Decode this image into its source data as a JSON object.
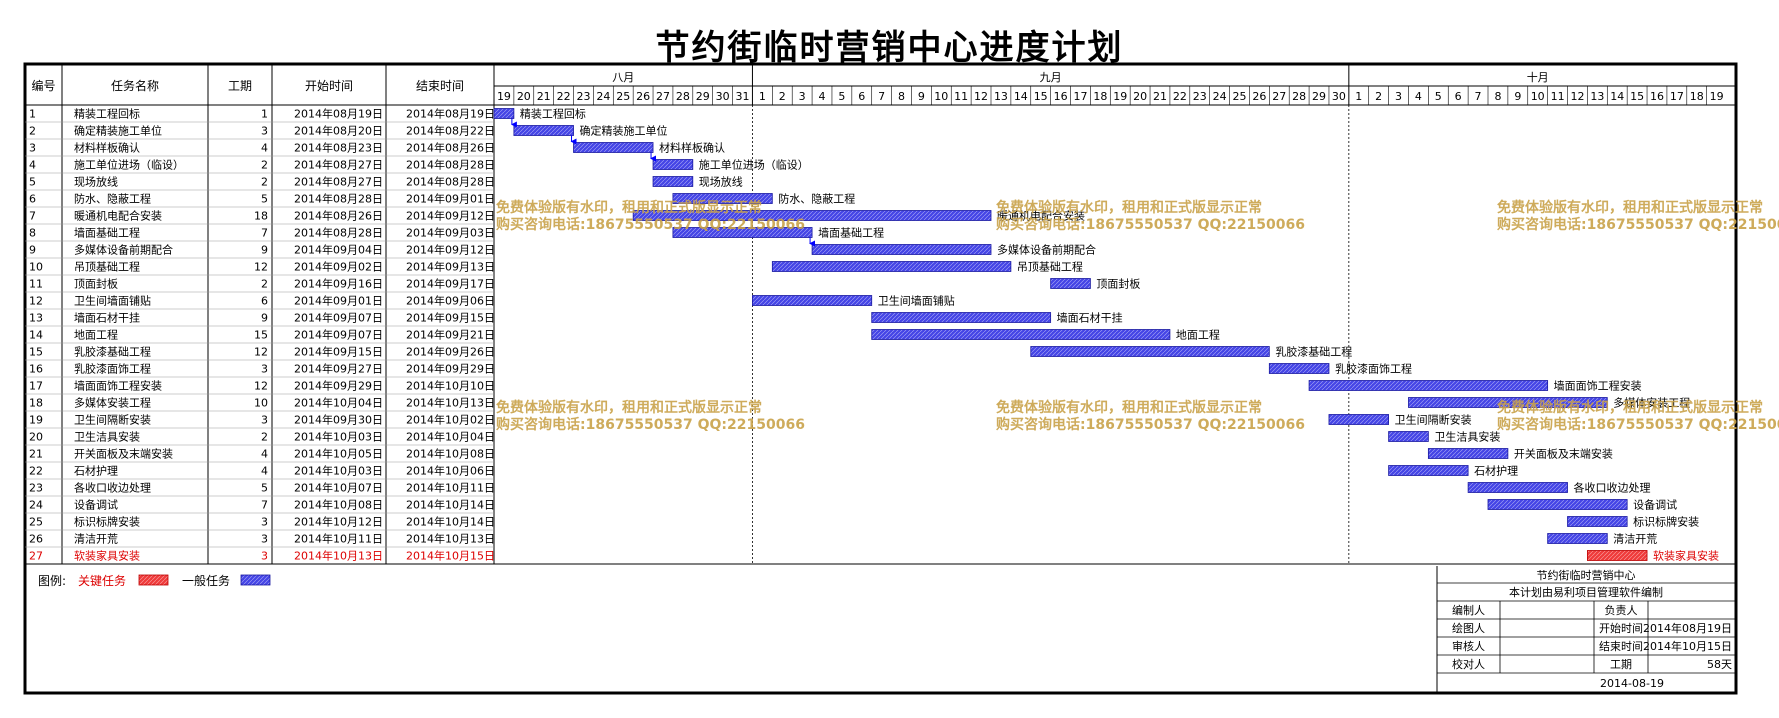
{
  "title": "节约街临时营销中心进度计划",
  "colors": {
    "normal": "#4545e6",
    "critical": "#ef3b3b",
    "critical_text": "#dd0000",
    "frame": "#000000"
  },
  "headers": {
    "no": "编号",
    "name": "任务名称",
    "dur": "工期",
    "start": "开始时间",
    "end": "结束时间"
  },
  "chart_data": {
    "type": "gantt",
    "title": "节约街临时营销中心进度计划",
    "months": [
      {
        "label": "八月",
        "days": [
          19,
          20,
          21,
          22,
          23,
          24,
          25,
          26,
          27,
          28,
          29,
          30,
          31
        ]
      },
      {
        "label": "九月",
        "days": [
          1,
          2,
          3,
          4,
          5,
          6,
          7,
          8,
          9,
          10,
          11,
          12,
          13,
          14,
          15,
          16,
          17,
          18,
          19,
          20,
          21,
          22,
          23,
          24,
          25,
          26,
          27,
          28,
          29,
          30
        ]
      },
      {
        "label": "十月",
        "days": [
          1,
          2,
          3,
          4,
          5,
          6,
          7,
          8,
          9,
          10,
          11,
          12,
          13,
          14,
          15,
          16,
          17,
          18,
          19
        ]
      }
    ],
    "tasks": [
      {
        "id": "1",
        "name": "精装工程回标",
        "dur": "1",
        "start": "2014年08月19日",
        "end": "2014年08月19日",
        "critical": false
      },
      {
        "id": "2",
        "name": "确定精装施工单位",
        "dur": "3",
        "start": "2014年08月20日",
        "end": "2014年08月22日",
        "critical": false
      },
      {
        "id": "3",
        "name": "材料样板确认",
        "dur": "4",
        "start": "2014年08月23日",
        "end": "2014年08月26日",
        "critical": false
      },
      {
        "id": "4",
        "name": "施工单位进场（临设）",
        "dur": "2",
        "start": "2014年08月27日",
        "end": "2014年08月28日",
        "critical": false
      },
      {
        "id": "5",
        "name": "现场放线",
        "dur": "2",
        "start": "2014年08月27日",
        "end": "2014年08月28日",
        "critical": false
      },
      {
        "id": "6",
        "name": "防水、隐蔽工程",
        "dur": "5",
        "start": "2014年08月28日",
        "end": "2014年09月01日",
        "critical": false
      },
      {
        "id": "7",
        "name": "暖通机电配合安装",
        "dur": "18",
        "start": "2014年08月26日",
        "end": "2014年09月12日",
        "critical": false
      },
      {
        "id": "8",
        "name": "墙面基础工程",
        "dur": "7",
        "start": "2014年08月28日",
        "end": "2014年09月03日",
        "critical": false
      },
      {
        "id": "9",
        "name": "多媒体设备前期配合",
        "dur": "9",
        "start": "2014年09月04日",
        "end": "2014年09月12日",
        "critical": false
      },
      {
        "id": "10",
        "name": "吊顶基础工程",
        "dur": "12",
        "start": "2014年09月02日",
        "end": "2014年09月13日",
        "critical": false
      },
      {
        "id": "11",
        "name": "顶面封板",
        "dur": "2",
        "start": "2014年09月16日",
        "end": "2014年09月17日",
        "critical": false
      },
      {
        "id": "12",
        "name": "卫生间墙面铺贴",
        "dur": "6",
        "start": "2014年09月01日",
        "end": "2014年09月06日",
        "critical": false
      },
      {
        "id": "13",
        "name": "墙面石材干挂",
        "dur": "9",
        "start": "2014年09月07日",
        "end": "2014年09月15日",
        "critical": false
      },
      {
        "id": "14",
        "name": "地面工程",
        "dur": "15",
        "start": "2014年09月07日",
        "end": "2014年09月21日",
        "critical": false
      },
      {
        "id": "15",
        "name": "乳胶漆基础工程",
        "dur": "12",
        "start": "2014年09月15日",
        "end": "2014年09月26日",
        "critical": false
      },
      {
        "id": "16",
        "name": "乳胶漆面饰工程",
        "dur": "3",
        "start": "2014年09月27日",
        "end": "2014年09月29日",
        "critical": false
      },
      {
        "id": "17",
        "name": "墙面面饰工程安装",
        "dur": "12",
        "start": "2014年09月29日",
        "end": "2014年10月10日",
        "critical": false
      },
      {
        "id": "18",
        "name": "多媒体安装工程",
        "dur": "10",
        "start": "2014年10月04日",
        "end": "2014年10月13日",
        "critical": false
      },
      {
        "id": "19",
        "name": "卫生间隔断安装",
        "dur": "3",
        "start": "2014年09月30日",
        "end": "2014年10月02日",
        "critical": false
      },
      {
        "id": "20",
        "name": "卫生洁具安装",
        "dur": "2",
        "start": "2014年10月03日",
        "end": "2014年10月04日",
        "critical": false
      },
      {
        "id": "21",
        "name": "开关面板及末端安装",
        "dur": "4",
        "start": "2014年10月05日",
        "end": "2014年10月08日",
        "critical": false
      },
      {
        "id": "22",
        "name": "石材护理",
        "dur": "4",
        "start": "2014年10月03日",
        "end": "2014年10月06日",
        "critical": false
      },
      {
        "id": "23",
        "name": "各收口收边处理",
        "dur": "5",
        "start": "2014年10月07日",
        "end": "2014年10月11日",
        "critical": false
      },
      {
        "id": "24",
        "name": "设备调试",
        "dur": "7",
        "start": "2014年10月08日",
        "end": "2014年10月14日",
        "critical": false
      },
      {
        "id": "25",
        "name": "标识标牌安装",
        "dur": "3",
        "start": "2014年10月12日",
        "end": "2014年10月14日",
        "critical": false
      },
      {
        "id": "26",
        "name": "清洁开荒",
        "dur": "3",
        "start": "2014年10月11日",
        "end": "2014年10月13日",
        "critical": false
      },
      {
        "id": "27",
        "name": "软装家具安装",
        "dur": "3",
        "start": "2014年10月13日",
        "end": "2014年10月15日",
        "critical": true
      }
    ],
    "links": [
      [
        1,
        2
      ],
      [
        2,
        3
      ],
      [
        3,
        4
      ],
      [
        8,
        9
      ]
    ]
  },
  "legend": {
    "label": "图例:",
    "critical": "关键任务",
    "normal": "一般任务"
  },
  "info": {
    "project": "节约街临时营销中心",
    "software": "本计划由易利项目管理软件编制",
    "rows": [
      [
        "编制人",
        "",
        "负责人",
        ""
      ],
      [
        "绘图人",
        "",
        "开始时间",
        "2014年08月19日"
      ],
      [
        "审核人",
        "",
        "结束时间",
        "2014年10月15日"
      ],
      [
        "校对人",
        "",
        "工期",
        "58天"
      ]
    ],
    "date": "2014-08-19"
  },
  "watermark": {
    "line1": "免费体验版有水印，租用和正式版显示正常",
    "line2": "购买咨询电话:18675550537 QQ:22150066"
  }
}
